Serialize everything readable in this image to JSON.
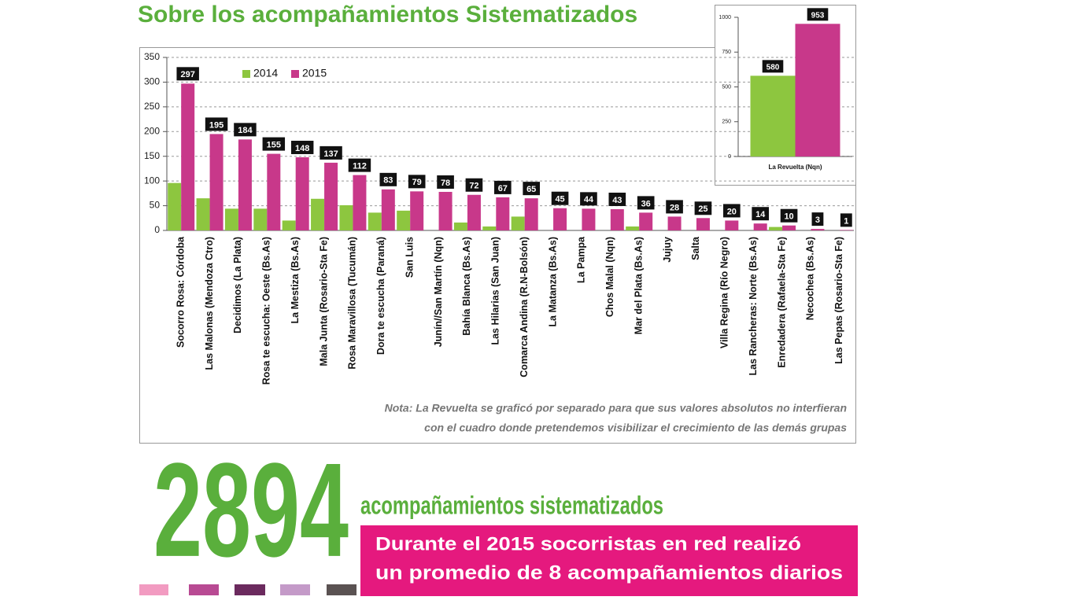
{
  "title": "Sobre los acompañamientos Sistematizados",
  "chart_data": [
    {
      "type": "bar",
      "categories": [
        "Socorro Rosa: Córdoba",
        "Las Malonas (Mendoza Ctro)",
        "Decidimos (La Plata)",
        "Rosa te escucha: Oeste (Bs.As)",
        "La Mestiza (Bs.As)",
        "Mala Junta (Rosario-Sta Fe)",
        "Rosa Maravillosa (Tucumán)",
        "Dora te escucha (Paraná)",
        "San Luis",
        "Junín//San Martín (Nqn)",
        "Bahía Blanca (Bs.As)",
        "Las Hilarias (San Juan)",
        "Comarca Andina (R.N-Bolsón)",
        "La Matanza (Bs.As)",
        "La Pampa",
        "Chos Malal (Nqn)",
        "Mar del Plata (Bs.As)",
        "Jujuy",
        "Salta",
        "Villa Regina (Río Negro)",
        "Las Rancheras: Norte (Bs.As)",
        "Enredadera (Rafaela-Sta Fe)",
        "Necochea (Bs.As)",
        "Las Pepas (Rosario-Sta Fe)"
      ],
      "series": [
        {
          "name": "2014",
          "color": "#8dc63f",
          "show_labels": false,
          "values": [
            96,
            65,
            44,
            44,
            20,
            64,
            51,
            36,
            40,
            0,
            16,
            8,
            28,
            0,
            0,
            0,
            8,
            0,
            0,
            0,
            0,
            7,
            0,
            0
          ]
        },
        {
          "name": "2015",
          "color": "#c8388a",
          "show_labels": true,
          "values": [
            297,
            195,
            184,
            155,
            148,
            137,
            112,
            83,
            79,
            78,
            72,
            67,
            65,
            45,
            44,
            43,
            36,
            28,
            25,
            20,
            14,
            10,
            3,
            1
          ]
        }
      ],
      "ylim": [
        0,
        350
      ],
      "yticks": [
        0,
        50,
        100,
        150,
        200,
        250,
        300,
        350
      ],
      "grid": true,
      "legend": "top-left",
      "rotate_labels": true,
      "note": [
        "Nota: La Revuelta se graficó por separado para que sus valores absolutos no interfieran",
        "con el cuadro donde pretendemos visibilizar el crecimiento de las demás grupas"
      ]
    },
    {
      "type": "bar",
      "categories": [
        "La Revuelta (Nqn)"
      ],
      "series": [
        {
          "name": "2014",
          "color": "#8dc63f",
          "show_labels": true,
          "values": [
            580
          ]
        },
        {
          "name": "2015",
          "color": "#c8388a",
          "show_labels": true,
          "values": [
            953
          ]
        }
      ],
      "ylim": [
        0,
        1000
      ],
      "yticks": [
        0,
        250,
        500,
        750,
        1000
      ],
      "grid": false,
      "rotate_labels": false
    }
  ],
  "summary": {
    "number": "2894",
    "label": "acompañamientos sistematizados",
    "lines": [
      "Durante el 2015 socorristas en red realizó",
      "un promedio de 8 acompañamientos diarios"
    ]
  }
}
